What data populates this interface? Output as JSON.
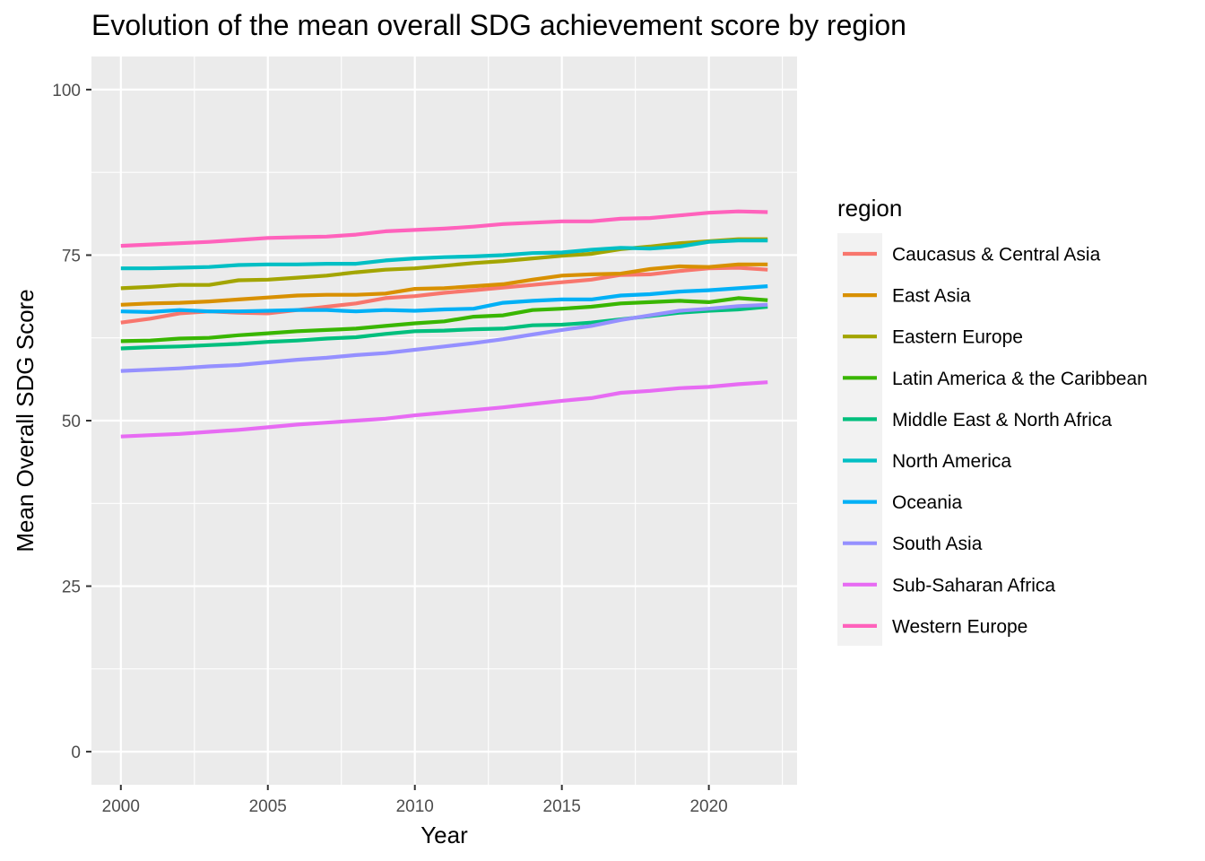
{
  "chart_data": {
    "type": "line",
    "title": "Evolution of the mean overall SDG achievement score by region",
    "xlabel": "Year",
    "ylabel": "Mean Overall SDG Score",
    "xlim": [
      1999,
      2023
    ],
    "ylim": [
      -5,
      105
    ],
    "x_ticks": [
      2000,
      2005,
      2010,
      2015,
      2020
    ],
    "y_ticks": [
      0,
      25,
      50,
      75,
      100
    ],
    "grid": true,
    "legend": {
      "title": "region",
      "position": "right"
    },
    "x": [
      2000,
      2001,
      2002,
      2003,
      2004,
      2005,
      2006,
      2007,
      2008,
      2009,
      2010,
      2011,
      2012,
      2013,
      2014,
      2015,
      2016,
      2017,
      2018,
      2019,
      2020,
      2021,
      2022
    ],
    "series": [
      {
        "name": "Caucasus & Central Asia",
        "color": "#F8766D",
        "values": [
          64.8,
          65.4,
          66.2,
          66.5,
          66.3,
          66.2,
          66.7,
          67.2,
          67.7,
          68.5,
          68.8,
          69.3,
          69.7,
          70.1,
          70.5,
          70.9,
          71.3,
          72.0,
          72.1,
          72.6,
          73.0,
          73.1,
          72.8
        ]
      },
      {
        "name": "East Asia",
        "color": "#D89000",
        "values": [
          67.5,
          67.7,
          67.8,
          68.0,
          68.3,
          68.6,
          68.9,
          69.0,
          69.0,
          69.2,
          69.9,
          70.0,
          70.3,
          70.6,
          71.3,
          71.9,
          72.1,
          72.2,
          72.9,
          73.3,
          73.2,
          73.6,
          73.6
        ]
      },
      {
        "name": "Eastern Europe",
        "color": "#A3A500",
        "values": [
          70.0,
          70.2,
          70.5,
          70.5,
          71.2,
          71.3,
          71.6,
          71.9,
          72.4,
          72.8,
          73.0,
          73.4,
          73.8,
          74.1,
          74.5,
          74.9,
          75.2,
          75.9,
          76.3,
          76.8,
          77.1,
          77.4,
          77.4
        ]
      },
      {
        "name": "Latin America & the Caribbean",
        "color": "#39B600",
        "values": [
          62.0,
          62.1,
          62.4,
          62.5,
          62.9,
          63.2,
          63.5,
          63.7,
          63.9,
          64.3,
          64.7,
          65.0,
          65.7,
          65.9,
          66.7,
          66.9,
          67.2,
          67.7,
          67.9,
          68.1,
          67.9,
          68.5,
          68.2
        ]
      },
      {
        "name": "Middle East & North Africa",
        "color": "#00BF7D",
        "values": [
          60.9,
          61.1,
          61.2,
          61.4,
          61.6,
          61.9,
          62.1,
          62.4,
          62.6,
          63.1,
          63.5,
          63.6,
          63.8,
          63.9,
          64.4,
          64.5,
          64.8,
          65.3,
          65.8,
          66.3,
          66.6,
          66.8,
          67.2
        ]
      },
      {
        "name": "North America",
        "color": "#00BFC4",
        "values": [
          73.0,
          73.0,
          73.1,
          73.2,
          73.5,
          73.6,
          73.6,
          73.7,
          73.7,
          74.2,
          74.5,
          74.7,
          74.8,
          75.0,
          75.3,
          75.4,
          75.8,
          76.1,
          76.0,
          76.3,
          77.0,
          77.2,
          77.2
        ]
      },
      {
        "name": "Oceania",
        "color": "#00B0F6",
        "values": [
          66.5,
          66.4,
          66.7,
          66.5,
          66.5,
          66.6,
          66.7,
          66.7,
          66.5,
          66.7,
          66.6,
          66.8,
          66.9,
          67.8,
          68.1,
          68.3,
          68.3,
          68.9,
          69.1,
          69.5,
          69.7,
          70.0,
          70.3
        ]
      },
      {
        "name": "South Asia",
        "color": "#9590FF",
        "values": [
          57.5,
          57.7,
          57.9,
          58.2,
          58.4,
          58.8,
          59.2,
          59.5,
          59.9,
          60.2,
          60.7,
          61.2,
          61.7,
          62.3,
          63.0,
          63.7,
          64.3,
          65.2,
          65.9,
          66.6,
          66.9,
          67.3,
          67.5
        ]
      },
      {
        "name": "Sub-Saharan Africa",
        "color": "#E76BF3",
        "values": [
          47.6,
          47.8,
          48.0,
          48.3,
          48.6,
          49.0,
          49.4,
          49.7,
          50.0,
          50.3,
          50.8,
          51.2,
          51.6,
          52.0,
          52.5,
          53.0,
          53.4,
          54.2,
          54.5,
          54.9,
          55.1,
          55.5,
          55.8
        ]
      },
      {
        "name": "Western Europe",
        "color": "#FF62BC",
        "values": [
          76.4,
          76.6,
          76.8,
          77.0,
          77.3,
          77.6,
          77.7,
          77.8,
          78.1,
          78.6,
          78.8,
          79.0,
          79.3,
          79.7,
          79.9,
          80.1,
          80.1,
          80.5,
          80.6,
          81.0,
          81.4,
          81.6,
          81.5
        ]
      }
    ]
  }
}
